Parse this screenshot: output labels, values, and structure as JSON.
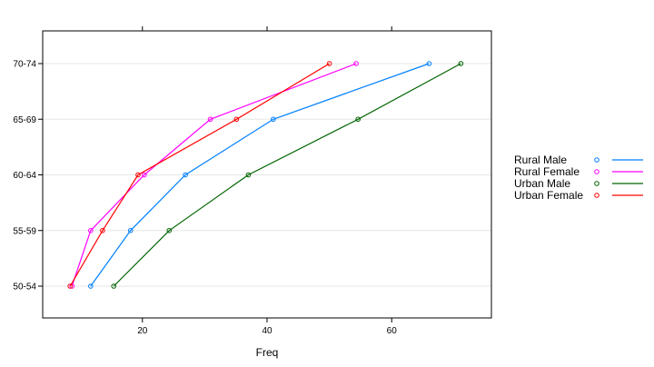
{
  "chart_data": {
    "type": "line",
    "title": "",
    "xlabel": "Freq",
    "ylabel": "",
    "categories": [
      "50-54",
      "55-59",
      "60-64",
      "65-69",
      "70-74"
    ],
    "xlim": [
      4,
      76
    ],
    "x_ticks": [
      20,
      40,
      60
    ],
    "grid": "horizontal",
    "legend_position": "right",
    "series": [
      {
        "name": "Rural Male",
        "color": "#0080ff",
        "values": [
          11.7,
          18.1,
          26.9,
          41.0,
          66.0
        ]
      },
      {
        "name": "Rural Female",
        "color": "#ff00ff",
        "values": [
          8.7,
          11.7,
          20.3,
          30.9,
          54.3
        ]
      },
      {
        "name": "Urban Male",
        "color": "#006400",
        "values": [
          15.4,
          24.3,
          37.0,
          54.6,
          71.1
        ]
      },
      {
        "name": "Urban Female",
        "color": "#ff0000",
        "values": [
          8.4,
          13.6,
          19.3,
          35.1,
          50.0
        ]
      }
    ]
  }
}
